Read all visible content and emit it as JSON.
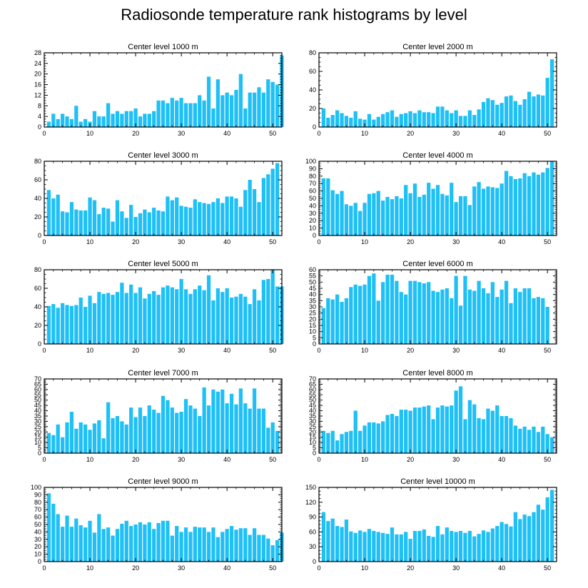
{
  "title": "Radiosonde temperature rank histograms by level",
  "colors": {
    "bar": "#1ec0f5",
    "axis": "#000000",
    "background": "#ffffff"
  },
  "chart_data": [
    {
      "type": "bar",
      "title": "Center level 1000 m",
      "x_start": 1,
      "xlim": [
        0,
        52
      ],
      "xticks": [
        0,
        10,
        20,
        30,
        40,
        50
      ],
      "ylim": [
        0,
        28
      ],
      "yticks": [
        0,
        4,
        8,
        12,
        16,
        20,
        24,
        28
      ],
      "values": [
        2,
        5,
        3,
        5,
        4,
        3,
        8,
        2,
        3,
        2,
        6,
        4,
        4,
        9,
        5,
        6,
        5,
        6,
        6,
        7,
        4,
        5,
        5,
        6,
        10,
        10,
        9,
        11,
        10,
        11,
        9,
        9,
        9,
        12,
        10,
        19,
        7,
        18,
        12,
        13,
        12,
        14,
        20,
        7,
        13,
        13,
        15,
        13,
        18,
        17,
        16,
        27
      ]
    },
    {
      "type": "bar",
      "title": "Center level 2000 m",
      "x_start": 1,
      "xlim": [
        0,
        52
      ],
      "xticks": [
        0,
        10,
        20,
        30,
        40,
        50
      ],
      "ylim": [
        0,
        80
      ],
      "yticks": [
        0,
        20,
        40,
        60,
        80
      ],
      "values": [
        20,
        10,
        13,
        18,
        15,
        12,
        10,
        17,
        9,
        8,
        14,
        8,
        11,
        14,
        16,
        18,
        11,
        14,
        15,
        17,
        15,
        18,
        16,
        16,
        15,
        22,
        22,
        18,
        15,
        18,
        12,
        12,
        18,
        13,
        19,
        27,
        31,
        29,
        24,
        26,
        33,
        34,
        28,
        24,
        30,
        38,
        33,
        35,
        34,
        53,
        73
      ]
    },
    {
      "type": "bar",
      "title": "Center level 3000 m",
      "x_start": 1,
      "xlim": [
        0,
        52
      ],
      "xticks": [
        0,
        10,
        20,
        30,
        40,
        50
      ],
      "ylim": [
        0,
        80
      ],
      "yticks": [
        0,
        20,
        40,
        60,
        80
      ],
      "values": [
        49,
        40,
        44,
        26,
        25,
        36,
        28,
        27,
        27,
        41,
        38,
        23,
        30,
        29,
        15,
        38,
        26,
        19,
        33,
        20,
        24,
        28,
        25,
        30,
        27,
        26,
        42,
        38,
        41,
        32,
        31,
        30,
        39,
        36,
        35,
        34,
        36,
        40,
        35,
        42,
        42,
        40,
        31,
        49,
        60,
        50,
        36,
        62,
        66,
        72,
        78
      ]
    },
    {
      "type": "bar",
      "title": "Center level 4000 m",
      "x_start": 1,
      "xlim": [
        0,
        52
      ],
      "xticks": [
        0,
        10,
        20,
        30,
        40,
        50
      ],
      "ylim": [
        0,
        100
      ],
      "yticks": [
        0,
        10,
        20,
        30,
        40,
        50,
        60,
        70,
        80,
        90,
        100
      ],
      "values": [
        77,
        77,
        61,
        56,
        60,
        42,
        40,
        44,
        33,
        44,
        56,
        57,
        60,
        47,
        52,
        49,
        53,
        50,
        68,
        57,
        70,
        52,
        55,
        71,
        63,
        68,
        56,
        54,
        71,
        45,
        53,
        53,
        41,
        66,
        72,
        63,
        66,
        65,
        64,
        70,
        87,
        80,
        76,
        77,
        84,
        80,
        85,
        82,
        85,
        91,
        100
      ]
    },
    {
      "type": "bar",
      "title": "Center level 5000 m",
      "x_start": 1,
      "xlim": [
        0,
        52
      ],
      "xticks": [
        0,
        10,
        20,
        30,
        40,
        50
      ],
      "ylim": [
        0,
        80
      ],
      "yticks": [
        0,
        20,
        40,
        60,
        80
      ],
      "values": [
        41,
        43,
        39,
        44,
        42,
        41,
        42,
        50,
        40,
        52,
        44,
        56,
        54,
        55,
        53,
        56,
        66,
        55,
        64,
        55,
        61,
        49,
        54,
        57,
        53,
        61,
        63,
        61,
        59,
        70,
        59,
        54,
        59,
        63,
        58,
        74,
        47,
        60,
        56,
        60,
        50,
        51,
        54,
        51,
        43,
        59,
        47,
        69,
        70,
        80,
        62,
        62
      ]
    },
    {
      "type": "bar",
      "title": "Center level 6000 m",
      "x_start": 1,
      "xlim": [
        0,
        52
      ],
      "xticks": [
        0,
        10,
        20,
        30,
        40,
        50
      ],
      "ylim": [
        0,
        60
      ],
      "yticks": [
        0,
        5,
        10,
        15,
        20,
        25,
        30,
        35,
        40,
        45,
        50,
        55,
        60
      ],
      "values": [
        29,
        37,
        36,
        40,
        34,
        37,
        46,
        48,
        47,
        48,
        55,
        57,
        35,
        50,
        56,
        56,
        51,
        42,
        40,
        51,
        51,
        50,
        49,
        50,
        43,
        42,
        44,
        45,
        37,
        55,
        31,
        55,
        44,
        43,
        51,
        45,
        41,
        50,
        38,
        44,
        51,
        33,
        45,
        42,
        45,
        45,
        37,
        38,
        37,
        30
      ]
    },
    {
      "type": "bar",
      "title": "Center level 7000 m",
      "x_start": 1,
      "xlim": [
        0,
        52
      ],
      "xticks": [
        0,
        10,
        20,
        30,
        40,
        50
      ],
      "ylim": [
        0,
        70
      ],
      "yticks": [
        0,
        5,
        10,
        15,
        20,
        25,
        30,
        35,
        40,
        45,
        50,
        55,
        60,
        65,
        70
      ],
      "values": [
        19,
        17,
        27,
        15,
        29,
        39,
        23,
        29,
        27,
        22,
        28,
        31,
        14,
        48,
        33,
        35,
        30,
        27,
        43,
        34,
        43,
        35,
        45,
        41,
        38,
        54,
        50,
        43,
        38,
        39,
        51,
        45,
        42,
        35,
        62,
        45,
        60,
        58,
        60,
        47,
        56,
        46,
        61,
        47,
        42,
        61,
        42,
        42,
        24,
        29,
        21
      ]
    },
    {
      "type": "bar",
      "title": "Center level 8000 m",
      "x_start": 1,
      "xlim": [
        0,
        52
      ],
      "xticks": [
        0,
        10,
        20,
        30,
        40,
        50
      ],
      "ylim": [
        0,
        70
      ],
      "yticks": [
        0,
        5,
        10,
        15,
        20,
        25,
        30,
        35,
        40,
        45,
        50,
        55,
        60,
        65,
        70
      ],
      "values": [
        21,
        19,
        21,
        12,
        18,
        20,
        21,
        40,
        21,
        26,
        29,
        29,
        28,
        30,
        36,
        37,
        35,
        41,
        41,
        40,
        43,
        43,
        44,
        45,
        32,
        43,
        45,
        44,
        45,
        59,
        63,
        32,
        50,
        46,
        33,
        32,
        42,
        40,
        45,
        35,
        35,
        33,
        26,
        23,
        25,
        22,
        25,
        20,
        25,
        18,
        15
      ]
    },
    {
      "type": "bar",
      "title": "Center level 9000 m",
      "x_start": 1,
      "xlim": [
        0,
        52
      ],
      "xticks": [
        0,
        10,
        20,
        30,
        40,
        50
      ],
      "ylim": [
        0,
        100
      ],
      "yticks": [
        0,
        10,
        20,
        30,
        40,
        50,
        60,
        70,
        80,
        90,
        100
      ],
      "values": [
        92,
        78,
        64,
        47,
        62,
        47,
        58,
        49,
        46,
        55,
        39,
        64,
        44,
        46,
        35,
        44,
        51,
        55,
        48,
        50,
        53,
        50,
        53,
        44,
        52,
        55,
        55,
        35,
        48,
        40,
        46,
        40,
        47,
        46,
        46,
        40,
        46,
        33,
        40,
        44,
        48,
        43,
        45,
        45,
        36,
        45,
        36,
        36,
        31,
        22,
        29,
        39
      ]
    },
    {
      "type": "bar",
      "title": "Center level 10000 m",
      "x_start": 1,
      "xlim": [
        0,
        52
      ],
      "xticks": [
        0,
        10,
        20,
        30,
        40,
        50
      ],
      "ylim": [
        0,
        150
      ],
      "yticks": [
        0,
        30,
        60,
        90,
        120,
        150
      ],
      "values": [
        100,
        82,
        87,
        72,
        70,
        85,
        61,
        58,
        63,
        60,
        66,
        62,
        60,
        58,
        56,
        69,
        55,
        55,
        60,
        46,
        62,
        62,
        65,
        52,
        50,
        72,
        55,
        69,
        62,
        60,
        62,
        58,
        62,
        51,
        56,
        63,
        60,
        67,
        72,
        80,
        76,
        71,
        100,
        86,
        95,
        92,
        100,
        115,
        105,
        130,
        145
      ]
    }
  ]
}
